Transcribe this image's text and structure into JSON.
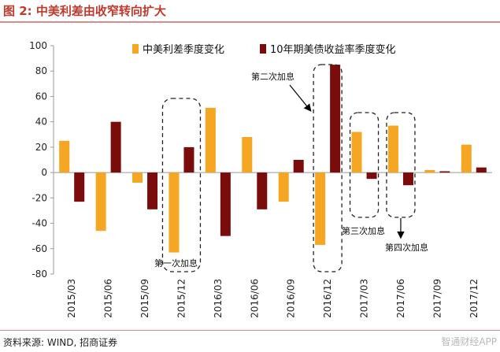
{
  "figure": {
    "title": "图 2: 中美利差由收窄转向扩大",
    "source": "资料来源: WIND, 招商证券",
    "watermark": "智通财经APP"
  },
  "chart_data": {
    "type": "bar",
    "categories": [
      "2015/03",
      "2015/06",
      "2015/09",
      "2015/12",
      "2016/03",
      "2016/06",
      "2016/09",
      "2016/12",
      "2017/03",
      "2017/06",
      "2017/09",
      "2017/12"
    ],
    "series": [
      {
        "name": "中美利差季度变化",
        "color": "#f5a623",
        "values": [
          25,
          -46,
          -8,
          -63,
          51,
          28,
          -23,
          -57,
          32,
          37,
          2,
          22
        ]
      },
      {
        "name": "10年期美债收益率季度变化",
        "color": "#7b0c0c",
        "values": [
          -23,
          40,
          -29,
          20,
          -50,
          -29,
          10,
          85,
          -5,
          -10,
          1,
          4
        ]
      }
    ],
    "ylim": [
      -80,
      100
    ],
    "yticks": [
      -80,
      -60,
      -40,
      -20,
      0,
      20,
      40,
      60,
      80,
      100
    ],
    "grid": false,
    "legend_position": "top",
    "annotations": [
      {
        "label": "第一次加息",
        "category_index": 3
      },
      {
        "label": "第二次加息",
        "category_index": 7
      },
      {
        "label": "第三次加息",
        "category_index": 8
      },
      {
        "label": "第四次加息",
        "category_index": 9
      }
    ]
  }
}
